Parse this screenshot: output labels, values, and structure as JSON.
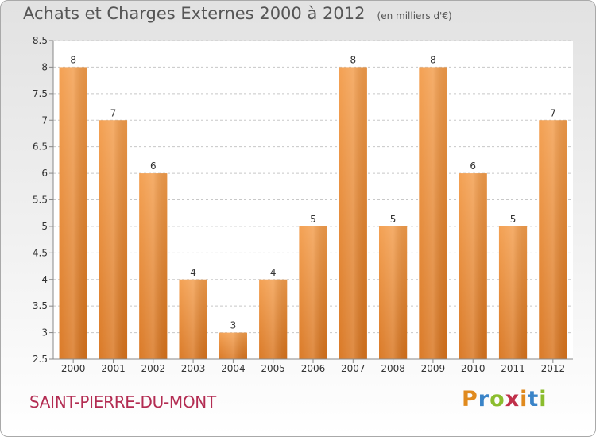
{
  "header": {
    "title": "Achats et Charges Externes 2000 à 2012",
    "subtitle": "(en milliers d'€)"
  },
  "place_name": "SAINT-PIERRE-DU-MONT",
  "logo": {
    "text": "Proxiti",
    "colors": [
      "#e08a1e",
      "#3a84c8",
      "#8bbd2e",
      "#c0304a"
    ]
  },
  "colors": {
    "bar": "#f39c4a",
    "bar_dark": "#d8731c",
    "grid": "#c8c8c8",
    "axis_text": "#333333",
    "place": "#b32c52"
  },
  "chart_data": {
    "type": "bar",
    "title": "Achats et Charges Externes 2000 à 2012",
    "subtitle": "(en milliers d'€)",
    "xlabel": "",
    "ylabel": "",
    "categories": [
      "2000",
      "2001",
      "2002",
      "2003",
      "2004",
      "2005",
      "2006",
      "2007",
      "2008",
      "2009",
      "2010",
      "2011",
      "2012"
    ],
    "values": [
      8,
      7,
      6,
      4,
      3,
      4,
      5,
      8,
      5,
      8,
      6,
      5,
      7
    ],
    "data_labels": [
      "8",
      "7",
      "6",
      "4",
      "3",
      "4",
      "5",
      "8",
      "5",
      "8",
      "6",
      "5",
      "7"
    ],
    "ylim": [
      2.5,
      8.5
    ],
    "yticks": [
      "2.5",
      "3",
      "3.5",
      "4",
      "4.5",
      "5",
      "5.5",
      "6",
      "6.5",
      "7",
      "7.5",
      "8",
      "8.5"
    ],
    "grid": "horizontal dashed",
    "legend": "none"
  }
}
